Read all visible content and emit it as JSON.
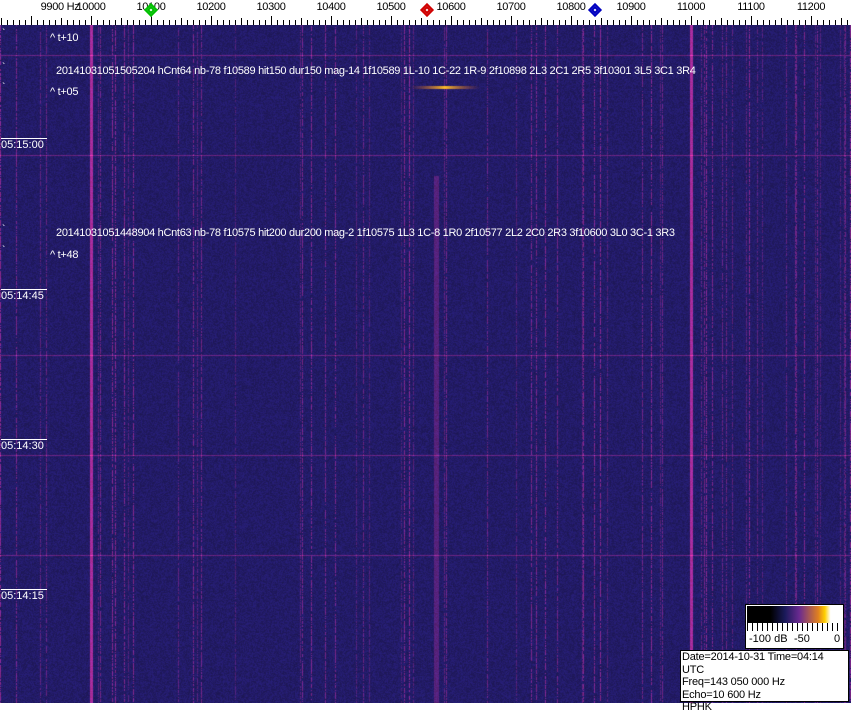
{
  "axis": {
    "unit_label": "9900 Hz",
    "freq_labels": [
      "10000",
      "10100",
      "10200",
      "10300",
      "10400",
      "10500",
      "10600",
      "10700",
      "10800",
      "10900",
      "11000",
      "11100",
      "11200"
    ],
    "markers": [
      {
        "name": "green",
        "freq_hz": 10100,
        "color": "#00c000"
      },
      {
        "name": "red",
        "freq_hz": 10560,
        "color": "#d00000"
      },
      {
        "name": "blue",
        "freq_hz": 10840,
        "color": "#0000c0"
      }
    ]
  },
  "overlays": {
    "t10": "^ t+10",
    "event1": "20141031051505204 hCnt64 nb-78 f10589 hit150 dur150 mag-14 1f10589 1L-10 1C-22 1R-9 2f10898 2L3 2C1 2R5 3f10301 3L5 3C1 3R4",
    "t05": "^ t+05",
    "event2": "20141031051448904 hCnt63 nb-78 f10575 hit200 dur200 mag-2 1f10575 1L3 1C-8 1R0 2f10577 2L2 2C0 2R3 3f10600 3L0 3C-1 3R3",
    "t48": "^ t+48"
  },
  "time_labels": [
    "05:15:00",
    "05:14:45",
    "05:14:30",
    "05:14:15"
  ],
  "colorbar": {
    "labels": [
      "-100 dB",
      "-50",
      "0"
    ]
  },
  "info": {
    "date": "Date=2014-10-31 Time=04:14 UTC",
    "freq": "Freq=143 050 000 Hz",
    "echo": "Echo=10 600 Hz",
    "station": "HPHK"
  },
  "colors": {
    "background": "#24206a",
    "carrier": "#c04080"
  }
}
